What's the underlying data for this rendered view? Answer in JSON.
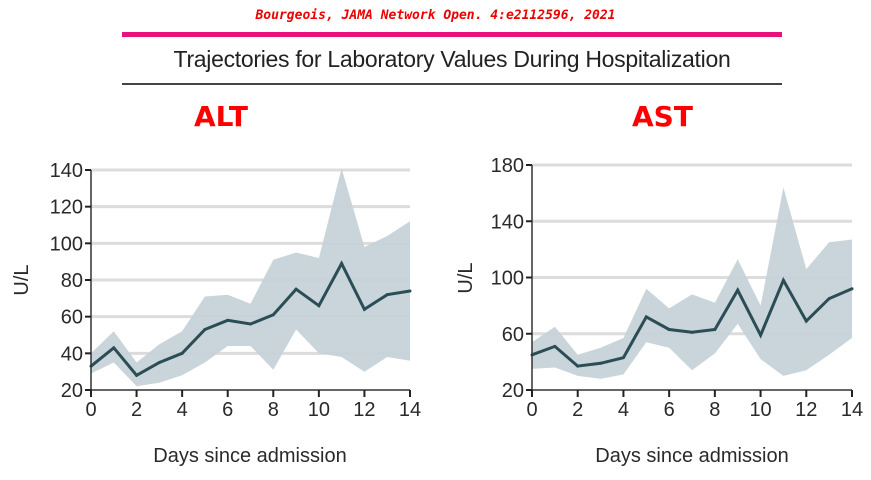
{
  "header": {
    "citation": "Bourgeois, JAMA Network Open. 4:e2112596, 2021",
    "title": "Trajectories for Laboratory Values During Hospitalization"
  },
  "colors": {
    "citation": "#ee0000",
    "rule": "#e8127a",
    "panel_label": "#ff0000",
    "line": "#2b4d55",
    "band": "#c5d1d8",
    "grid": "#dcdcdc"
  },
  "chart_data": [
    {
      "type": "line",
      "title": "ALT",
      "xlabel": "Days since admission",
      "ylabel": "U/L",
      "xlim": [
        0,
        14
      ],
      "ylim": [
        20,
        140
      ],
      "xticks": [
        0,
        2,
        4,
        6,
        8,
        10,
        12,
        14
      ],
      "yticks": [
        20,
        40,
        60,
        80,
        100,
        120,
        140
      ],
      "grid": true,
      "x": [
        0,
        1,
        2,
        3,
        4,
        5,
        6,
        7,
        8,
        9,
        10,
        11,
        12,
        13,
        14
      ],
      "series": [
        {
          "name": "mean",
          "values": [
            33,
            43,
            28,
            35,
            40,
            53,
            58,
            56,
            61,
            75,
            66,
            89,
            64,
            72,
            74
          ]
        },
        {
          "name": "upper",
          "values": [
            40,
            52,
            35,
            45,
            52,
            71,
            72,
            67,
            91,
            95,
            92,
            141,
            98,
            104,
            112
          ]
        },
        {
          "name": "lower",
          "values": [
            29,
            35,
            22,
            24,
            28,
            35,
            44,
            44,
            31,
            53,
            40,
            38,
            30,
            38,
            36
          ]
        }
      ]
    },
    {
      "type": "line",
      "title": "AST",
      "xlabel": "Days since admission",
      "ylabel": "U/L",
      "xlim": [
        0,
        14
      ],
      "ylim": [
        20,
        180
      ],
      "xticks": [
        0,
        2,
        4,
        6,
        8,
        10,
        12,
        14
      ],
      "yticks": [
        20,
        60,
        100,
        140,
        180
      ],
      "grid": true,
      "x": [
        0,
        1,
        2,
        3,
        4,
        5,
        6,
        7,
        8,
        9,
        10,
        11,
        12,
        13,
        14
      ],
      "series": [
        {
          "name": "mean",
          "values": [
            45,
            51,
            37,
            39,
            43,
            72,
            63,
            61,
            63,
            91,
            59,
            98,
            69,
            85,
            92
          ]
        },
        {
          "name": "upper",
          "values": [
            54,
            65,
            45,
            50,
            57,
            92,
            78,
            88,
            82,
            113,
            80,
            164,
            106,
            125,
            127
          ]
        },
        {
          "name": "lower",
          "values": [
            35,
            36,
            30,
            28,
            31,
            54,
            50,
            34,
            46,
            67,
            42,
            30,
            34,
            45,
            57
          ]
        }
      ]
    }
  ]
}
